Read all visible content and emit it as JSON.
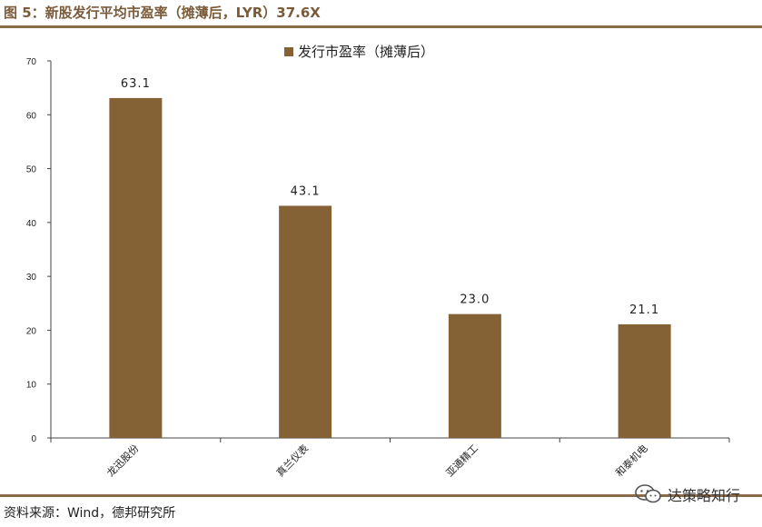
{
  "header": {
    "figure_title": "图 5：新股发行平均市盈率（摊薄后，LYR）37.6X"
  },
  "footer": {
    "source": "资料来源：Wind，德邦研究所",
    "watermark": "达策略知行"
  },
  "colors": {
    "bar": "#856235",
    "rule": "#8a6a48",
    "title": "#7b5b3a"
  },
  "chart_data": {
    "type": "bar",
    "title": "",
    "xlabel": "",
    "ylabel": "",
    "categories": [
      "龙迅股份",
      "真兰仪表",
      "亚通精工",
      "和泰机电"
    ],
    "series": [
      {
        "name": "发行市盈率（摊薄后）",
        "values": [
          63.1,
          43.1,
          23.0,
          21.1
        ]
      }
    ],
    "data_labels": [
      "63.1",
      "43.1",
      "23.0",
      "21.1"
    ],
    "ylim": [
      0,
      70
    ],
    "yticks": [
      0,
      10,
      20,
      30,
      40,
      50,
      60,
      70
    ],
    "legend": "top-center",
    "grid": false
  }
}
